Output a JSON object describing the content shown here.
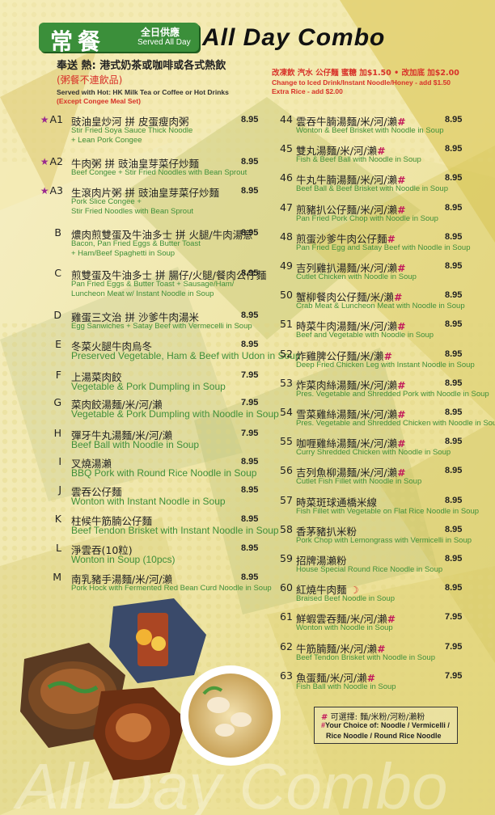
{
  "header": {
    "title_cjk": "常餐",
    "all_day_cjk": "全日供應",
    "served_all_day": "Served All Day",
    "title_en": "All Day Combo"
  },
  "note_left": {
    "line1": "奉送 熱: 港式奶茶或咖啡或各式熱飲",
    "line2": "(粥餐不連飲品)",
    "line3": "Served with Hot: HK Milk Tea or Coffee or Hot Drinks",
    "line4": "(Except Congee Meal Set)"
  },
  "note_right": {
    "line1": "改凍飲 汽水 公仔麵 蜜糖 加$1.50 • 改加底 加$2.00",
    "line2": "Change to Iced Drink/Instant Noodle/Honey - add $1.50",
    "line3": "Extra Rice - add $2.00"
  },
  "left_items": [
    {
      "code": "A1",
      "star": true,
      "zh": "豉油皇炒河 拼 皮蛋瘦肉粥",
      "en": [
        "Stir Fried Soya Sauce Thick Noodle",
        "+ Lean Pork Congee"
      ],
      "size": "small",
      "price": "8.95"
    },
    {
      "code": "A2",
      "star": true,
      "zh": "牛肉粥 拼 豉油皇芽菜仔炒麵",
      "en": [
        "Beef Congee + Stir Fried Noodles with Bean Sprout"
      ],
      "size": "small",
      "price": "8.95"
    },
    {
      "code": "A3",
      "star": true,
      "zh": "生滾肉片粥 拼 豉油皇芽菜仔炒麵",
      "en": [
        "Pork Slice Congee +",
        "Stir Fried Noodles with Bean Sprout"
      ],
      "size": "small",
      "price": "8.95"
    },
    {
      "code": "B",
      "star": false,
      "zh": "燶肉煎雙蛋及牛油多士 拼 火腿/牛肉湯意",
      "en": [
        "Bacon, Pan Fried Eggs & Butter Toast",
        "+ Ham/Beef Spaghetti in Soup"
      ],
      "size": "small",
      "price": "8.95"
    },
    {
      "code": "C",
      "star": false,
      "zh": "煎雙蛋及牛油多士 拼 腸仔/火腿/餐肉公仔麵",
      "en": [
        "Pan Fried Eggs & Butter Toast + Sausage/Ham/",
        "Luncheon Meat w/ Instant Noodle in Soup"
      ],
      "size": "small",
      "price": "8.95"
    },
    {
      "code": "D",
      "star": false,
      "zh": "雞蛋三文治 拼 沙爹牛肉湯米",
      "en": [
        "Egg Sanwiches + Satay Beef with Vermecelli in Soup"
      ],
      "size": "small",
      "price": "8.95"
    },
    {
      "code": "E",
      "star": false,
      "zh": "冬菜火腿牛肉烏冬",
      "en": [
        "Preserved Vegetable, Ham & Beef with Udon in Soup"
      ],
      "size": "big",
      "price": "8.95"
    },
    {
      "code": "F",
      "star": false,
      "zh": "上湯菜肉餃",
      "en": [
        "Vegetable & Pork Dumpling in Soup"
      ],
      "size": "big",
      "price": "7.95"
    },
    {
      "code": "G",
      "star": false,
      "zh": "菜肉餃湯麵/米/河/瀨",
      "en": [
        "Vegetable & Pork Dumpling with Noodle in Soup"
      ],
      "size": "big",
      "price": "7.95"
    },
    {
      "code": "H",
      "star": false,
      "zh": "彈牙牛丸湯麵/米/河/瀨",
      "en": [
        "Beef Ball with Noodle in Soup"
      ],
      "size": "big",
      "price": "7.95"
    },
    {
      "code": "I",
      "star": false,
      "zh": "叉燒湯瀨",
      "en": [
        "BBQ Pork with Round Rice Noodle in Soup"
      ],
      "size": "big",
      "price": "8.95"
    },
    {
      "code": "J",
      "star": false,
      "zh": "雲吞公仔麵",
      "en": [
        "Wonton with Instant Noodle in Soup"
      ],
      "size": "big",
      "price": "8.95"
    },
    {
      "code": "K",
      "star": false,
      "zh": "柱候牛筋腩公仔麵",
      "en": [
        "Beef Tendon Brisket with Instant Noodle in Soup"
      ],
      "size": "big",
      "price": "8.95"
    },
    {
      "code": "L",
      "star": false,
      "zh": "淨雲吞(10粒)",
      "en": [
        "Wonton in Soup (10pcs)"
      ],
      "size": "big",
      "price": "8.95"
    },
    {
      "code": "M",
      "star": false,
      "zh": "南乳豬手湯麵/米/河/瀨",
      "en": [
        "Pork Hock with Fermented Red Bean Curd Noodle in Soup"
      ],
      "size": "small",
      "price": "8.95"
    }
  ],
  "right_items": [
    {
      "num": "44",
      "zh": "雲吞牛腩湯麵/米/河/瀨",
      "hash": true,
      "en": "Wonton & Beef Brisket with Noodle in Soup",
      "price": "8.95"
    },
    {
      "num": "45",
      "zh": "雙丸湯麵/米/河/瀨",
      "hash": true,
      "en": "Fish & Beef Ball with Noodle in Soup",
      "price": "8.95"
    },
    {
      "num": "46",
      "zh": "牛丸牛腩湯麵/米/河/瀨",
      "hash": true,
      "en": "Beef Ball & Beef Brisket with Noodle in Soup",
      "price": "8.95"
    },
    {
      "num": "47",
      "zh": "煎豬扒公仔麵/米/河/瀨",
      "hash": true,
      "en": "Pan Fried Pork Chop with Noodle in Soup",
      "price": "8.95"
    },
    {
      "num": "48",
      "zh": "煎蛋沙爹牛肉公仔麵",
      "hash": true,
      "en": "Pan Fried Egg and Satay Beef with Noodle in Soup",
      "price": "8.95"
    },
    {
      "num": "49",
      "zh": "吉列雞扒湯麵/米/河/瀨",
      "hash": true,
      "en": "Cutlet Chicken with Noodle in Soup",
      "price": "8.95"
    },
    {
      "num": "50",
      "zh": "蟹柳餐肉公仔麵/米/瀨",
      "hash": true,
      "en": "Crab Meat & Luncheon Meat with Noodle in Soup",
      "price": "8.95"
    },
    {
      "num": "51",
      "zh": "時菜牛肉湯麵/米/河/瀨",
      "hash": true,
      "en": "Beef and Vegetable with Noodle in Soup",
      "price": "8.95"
    },
    {
      "num": "52",
      "zh": "炸雞脾公仔麵/米/瀨",
      "hash": true,
      "en": "Deep Fried Chicken Leg with Instant Noodle in Soup",
      "price": "8.95"
    },
    {
      "num": "53",
      "zh": "炸菜肉絲湯麵/米/河/瀨",
      "hash": true,
      "en": "Pres. Vegetable and Shredded Pork with Noodle in Soup",
      "price": "8.95"
    },
    {
      "num": "54",
      "zh": "雪菜雞絲湯麵/米/河/瀨",
      "hash": true,
      "en": "Pres. Vegetable and Shredded Chicken with Noodle in Soup",
      "price": "8.95"
    },
    {
      "num": "55",
      "zh": "咖喱雞絲湯麵/米/河/瀨",
      "hash": true,
      "en": "Curry Shredded Chicken with Noodle in Soup",
      "price": "8.95"
    },
    {
      "num": "56",
      "zh": "吉列魚柳湯麵/米/河/瀨",
      "hash": true,
      "en": "Cutlet Fish Fillet with Noodle in Soup",
      "price": "8.95"
    },
    {
      "num": "57",
      "zh": "時菜斑球通橋米線",
      "hash": false,
      "en": "Fish Fillet with Vegetable on Flat Rice Noodle in Soup",
      "price": "8.95"
    },
    {
      "num": "58",
      "zh": "香茅豬扒米粉",
      "hash": false,
      "en": "Pork Chop with Lemongrass with Vermicelli in Soup",
      "price": "8.95"
    },
    {
      "num": "59",
      "zh": "招牌湯瀨粉",
      "hash": false,
      "en": "House Special Round Rice Noodle in Soup",
      "price": "8.95"
    },
    {
      "num": "60",
      "zh": "紅燒牛肉麵",
      "hash": false,
      "spicy": true,
      "en": "Braised Beef Noodle in Soup",
      "price": "8.95"
    },
    {
      "num": "61",
      "zh": "鮮蝦雲吞麵/米/河/瀨",
      "hash": true,
      "en": "Wonton with Noodle in Soup",
      "price": "7.95"
    },
    {
      "num": "62",
      "zh": "牛筋腩麵/米/河/瀨",
      "hash": true,
      "en": "Beef Tendon Brisket with Noodle in Soup",
      "price": "7.95"
    },
    {
      "num": "63",
      "zh": "魚蛋麵/米/河/瀨",
      "hash": true,
      "en": "Fish Ball with Noodle in Soup",
      "price": "7.95"
    }
  ],
  "choice": {
    "mark": "#",
    "line1": "可選擇: 麵/米粉/河粉/瀨粉",
    "line2": "Your Choice of:  Noodle / Vermicelli /",
    "line3": "Rice Noodle / Round Rice Noodle"
  },
  "icons": {
    "star": "star-icon",
    "spicy": "chili-pepper-icon"
  },
  "colors": {
    "badge_green": "#3b8f3a",
    "english_green": "#3f8f3a",
    "red_note": "#d8322a",
    "hash_pink": "#c2185b",
    "star_purple": "#9a2a8f"
  }
}
